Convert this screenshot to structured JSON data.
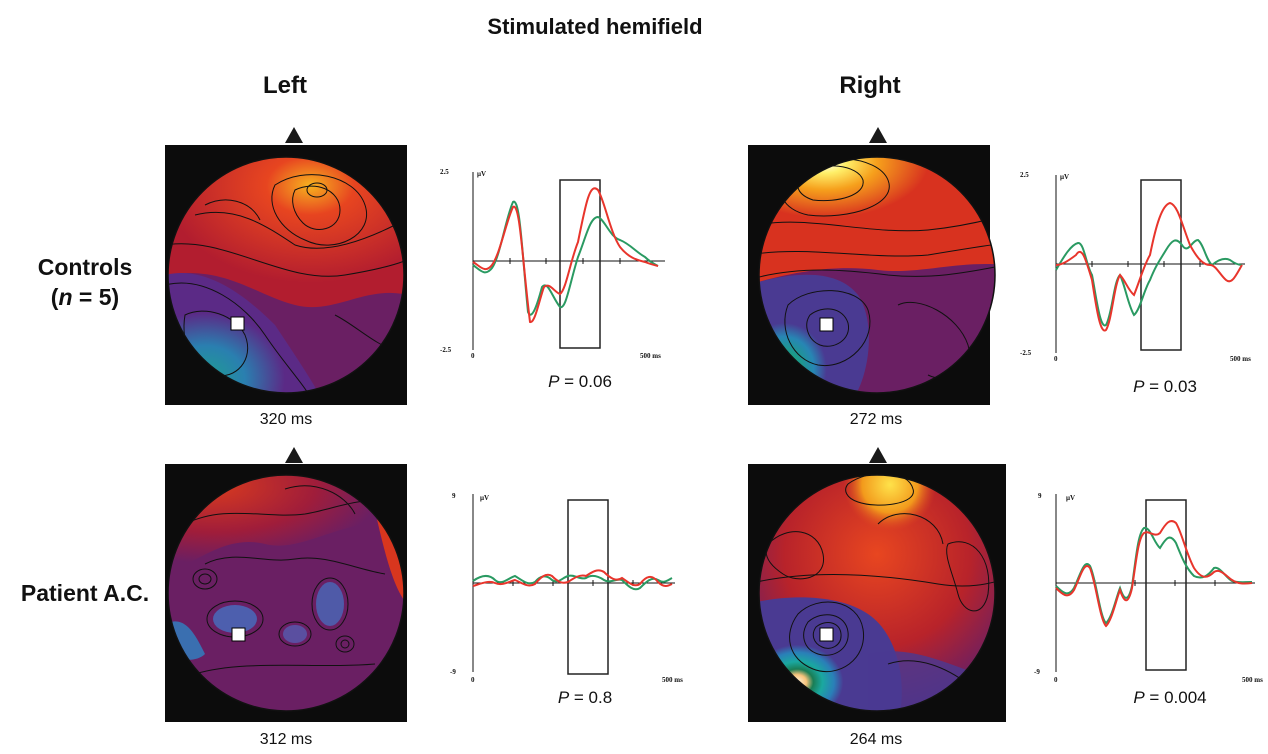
{
  "figure": {
    "title": "Stimulated hemifield",
    "columns": [
      "Left",
      "Right"
    ],
    "rows": [
      {
        "label_line1": "Controls",
        "label_line2_italic": "n",
        "label_line2_rest": " = 5)"
      },
      {
        "label_line1": "Patient A.C."
      }
    ],
    "panels": [
      {
        "id": "controls-left",
        "time": "320 ms",
        "p_label": "P",
        "p_value": " = 0.06",
        "y_top": "2.5",
        "y_bottom": "-2.5",
        "unit": "µV",
        "x_start": "0",
        "x_end": "500 ms"
      },
      {
        "id": "controls-right",
        "time": "272 ms",
        "p_label": "P",
        "p_value": " = 0.03",
        "y_top": "2.5",
        "y_bottom": "-2.5",
        "unit": "µV",
        "x_start": "0",
        "x_end": "500 ms"
      },
      {
        "id": "patient-left",
        "time": "312 ms",
        "p_label": "P",
        "p_value": " = 0.8",
        "y_top": "9",
        "y_bottom": "-9",
        "unit": "µV",
        "x_start": "0",
        "x_end": "500 ms"
      },
      {
        "id": "patient-right",
        "time": "264 ms",
        "p_label": "P",
        "p_value": " = 0.004",
        "y_top": "9",
        "y_bottom": "-9",
        "unit": "µV",
        "x_start": "0",
        "x_end": "500 ms"
      }
    ],
    "colors": {
      "red_trace": "#e8352c",
      "green_trace": "#2a9a62",
      "frame": "#222222"
    }
  }
}
